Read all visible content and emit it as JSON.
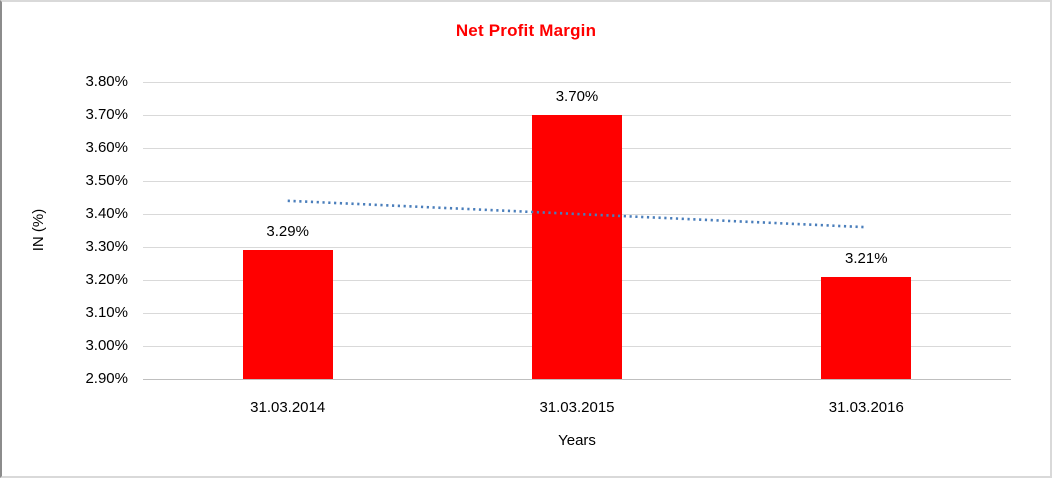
{
  "chart_data": {
    "type": "bar",
    "title": "Net Profit Margin",
    "title_color": "#FF0000",
    "xlabel": "Years",
    "ylabel": "IN (%)",
    "categories": [
      "31.03.2014",
      "31.03.2015",
      "31.03.2016"
    ],
    "values": [
      3.29,
      3.7,
      3.21
    ],
    "data_labels": [
      "3.29%",
      "3.70%",
      "3.21%"
    ],
    "ylim": [
      2.9,
      3.8
    ],
    "ytick_step": 0.1,
    "ytick_labels": [
      "3.80%",
      "3.70%",
      "3.60%",
      "3.50%",
      "3.40%",
      "3.30%",
      "3.20%",
      "3.10%",
      "3.00%",
      "2.90%"
    ],
    "grid": true,
    "legend": "none",
    "bar_color": "#FF0000",
    "gridline_color": "#D9D9D9",
    "axisline_color": "#BFBFBF",
    "trendline": {
      "type": "linear",
      "style": "dotted",
      "color": "#4A7EBB",
      "start_value": 3.44,
      "end_value": 3.36
    }
  }
}
